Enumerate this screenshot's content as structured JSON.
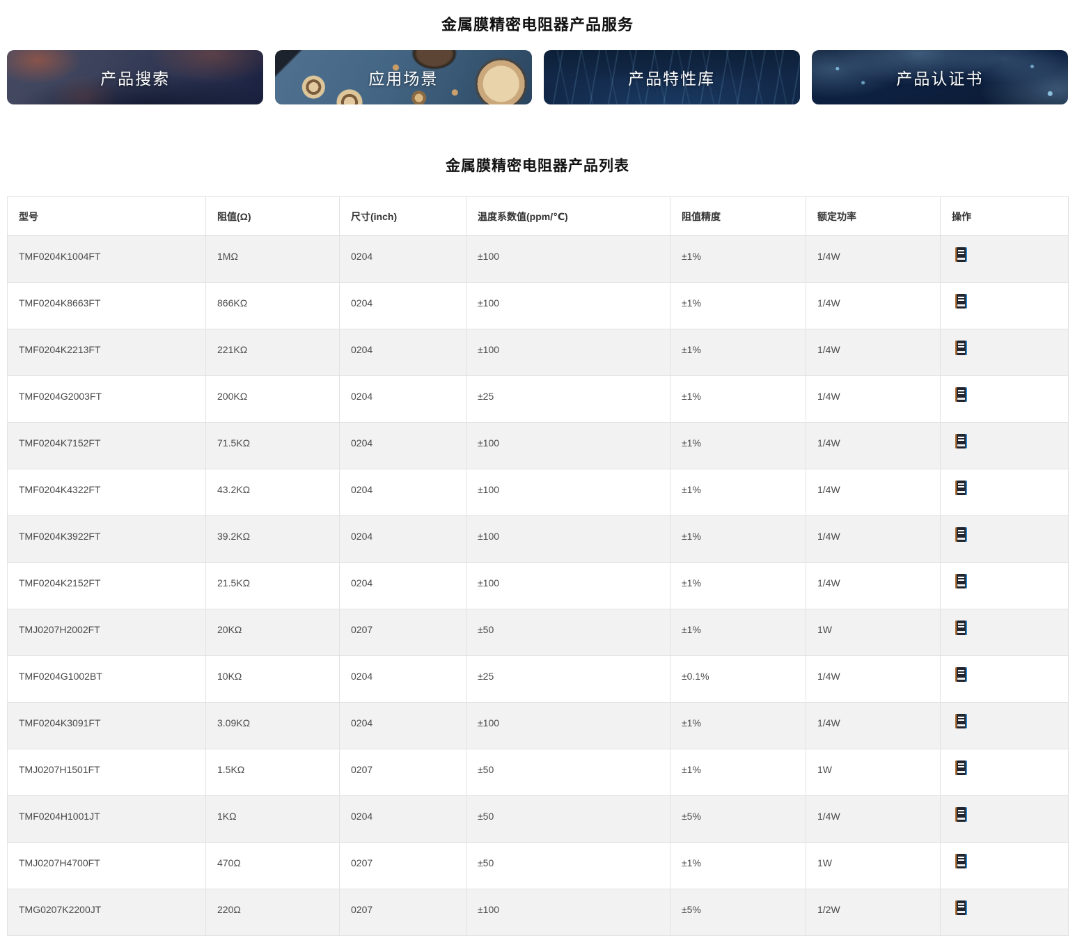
{
  "page": {
    "title": "金属膜精密电阻器产品服务",
    "section_title": "金属膜精密电阻器产品列表"
  },
  "banners": [
    {
      "label": "产品搜索",
      "image": "dark-circuit-board-image"
    },
    {
      "label": "应用场景",
      "image": "pcb-components-image"
    },
    {
      "label": "产品特性库",
      "image": "blue-data-streams-image"
    },
    {
      "label": "产品认证书",
      "image": "world-map-network-image"
    }
  ],
  "table": {
    "headers": [
      "型号",
      "阻值(Ω)",
      "尺寸(inch)",
      "温度系数值(ppm/℃)",
      "阻值精度",
      "额定功率",
      "操作"
    ],
    "action_icon": "book-icon",
    "rows": [
      [
        "TMF0204K1004FT",
        "1MΩ",
        "0204",
        "±100",
        "±1%",
        "1/4W"
      ],
      [
        "TMF0204K8663FT",
        "866KΩ",
        "0204",
        "±100",
        "±1%",
        "1/4W"
      ],
      [
        "TMF0204K2213FT",
        "221KΩ",
        "0204",
        "±100",
        "±1%",
        "1/4W"
      ],
      [
        "TMF0204G2003FT",
        "200KΩ",
        "0204",
        "±25",
        "±1%",
        "1/4W"
      ],
      [
        "TMF0204K7152FT",
        "71.5KΩ",
        "0204",
        "±100",
        "±1%",
        "1/4W"
      ],
      [
        "TMF0204K4322FT",
        "43.2KΩ",
        "0204",
        "±100",
        "±1%",
        "1/4W"
      ],
      [
        "TMF0204K3922FT",
        "39.2KΩ",
        "0204",
        "±100",
        "±1%",
        "1/4W"
      ],
      [
        "TMF0204K2152FT",
        "21.5KΩ",
        "0204",
        "±100",
        "±1%",
        "1/4W"
      ],
      [
        "TMJ0207H2002FT",
        "20KΩ",
        "0207",
        "±50",
        "±1%",
        "1W"
      ],
      [
        "TMF0204G1002BT",
        "10KΩ",
        "0204",
        "±25",
        "±0.1%",
        "1/4W"
      ],
      [
        "TMF0204K3091FT",
        "3.09KΩ",
        "0204",
        "±100",
        "±1%",
        "1/4W"
      ],
      [
        "TMJ0207H1501FT",
        "1.5KΩ",
        "0207",
        "±50",
        "±1%",
        "1W"
      ],
      [
        "TMF0204H1001JT",
        "1KΩ",
        "0204",
        "±50",
        "±5%",
        "1/4W"
      ],
      [
        "TMJ0207H4700FT",
        "470Ω",
        "0207",
        "±50",
        "±1%",
        "1W"
      ],
      [
        "TMG0207K2200JT",
        "220Ω",
        "0207",
        "±100",
        "±5%",
        "1/2W"
      ]
    ]
  },
  "colors": {
    "row_alt_background": "#f2f2f2",
    "table_border": "#e2e2e2",
    "header_text": "#333333",
    "cell_text": "#4a4a4a",
    "banner_text": "#ffffff"
  }
}
